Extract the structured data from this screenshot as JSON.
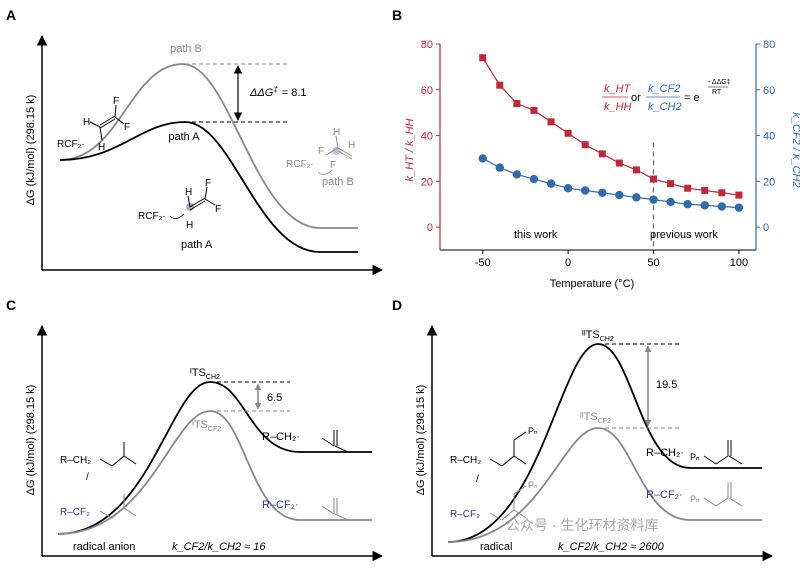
{
  "panels": {
    "a": {
      "letter": "A",
      "ylabel": "ΔG (kJ/mol) (298.15 k)",
      "path_b_label": "path B",
      "path_a_label": "path A",
      "ddg_label": "ΔΔG",
      "ddg_symbol": "‡",
      "ddg_value": "= 8.1",
      "reagent_left": "RCF₂·",
      "reagent_mid": "RCF₂·",
      "reagent_right": "RCF₂·",
      "atom_h": "H",
      "atom_f": "F",
      "path_b_small": "path B",
      "path_a_small": "path A",
      "colors": {
        "path_a": "#000000",
        "path_b": "#888888"
      }
    },
    "b": {
      "letter": "B",
      "xlabel": "Temperature (°C)",
      "ylabel_left": "k_HT / k_HH",
      "ylabel_right": "k_CF2 / k_CH2",
      "region_left": "this work",
      "region_right": "previous work",
      "eq_khT": "k_HT",
      "eq_khh": "k_HH",
      "eq_or": "or",
      "eq_kcf2": "k_CF2",
      "eq_kch2": "k_CH2",
      "eq_rhs": "= e",
      "eq_exp_num": "- ΔΔG‡",
      "eq_exp_den": "RT"
    },
    "c": {
      "letter": "C",
      "ylabel": "ΔG (kJ/mol) (298.15 k)",
      "ts_top": "ᴵTS",
      "ts_top_sub": "CH2",
      "ts_bottom": "ᴵTS",
      "ts_bottom_sub": "CF2",
      "gap_value": "6.5",
      "bottom_label": "radical anion",
      "ratio": "k_CF2/k_CH2 ≈ 16",
      "rxn_top": "R–CH₂·",
      "rxn_bottom": "R–CF₂·",
      "left_top": "R–CH₂",
      "left_bottom": "R–CF₂",
      "slash": "/"
    },
    "d": {
      "letter": "D",
      "ylabel": "ΔG (kJ/mol) (298.15 k)",
      "ts_top": "ᴵᴵTS",
      "ts_top_sub": "CH2",
      "ts_bottom": "ᴵᴵTS",
      "ts_bottom_sub": "CF2",
      "gap_value": "19.5",
      "bottom_label": "radical",
      "ratio": "k_CF2/k_CH2 ≈ 2600",
      "rxn_top": "R–CH₂·",
      "rxn_bottom": "R–CF₂·",
      "left_top": "R–CH₂",
      "left_bottom": "R–CF₂",
      "slash": "/",
      "pn": "Pₙ",
      "watermark": "公众号 · 生化环材资料库"
    }
  },
  "chart_data": {
    "type": "scatter",
    "title": "",
    "xlabel": "Temperature (°C)",
    "ylabel": "kHT / kHH",
    "y2label": "kCF2 / kCH2",
    "xlim": [
      -75,
      110
    ],
    "ylim": [
      -10,
      80
    ],
    "y2lim": [
      -10,
      80
    ],
    "xticks": [
      "-50",
      "0",
      "50",
      "100"
    ],
    "yticks": [
      "0",
      "20",
      "40",
      "60",
      "80"
    ],
    "y2ticks": [
      "0",
      "20",
      "40",
      "60",
      "80"
    ],
    "vline_x": 50,
    "series": [
      {
        "name": "kHT/kHH",
        "axis": "left",
        "color": "#c0283a",
        "marker": "square",
        "x": [
          -50,
          -40,
          -30,
          -20,
          -10,
          0,
          10,
          20,
          30,
          40,
          50,
          60,
          70,
          80,
          90,
          100
        ],
        "y": [
          74,
          62,
          54,
          51,
          46,
          41,
          36,
          32,
          28,
          25,
          21,
          19,
          17,
          16,
          15,
          14
        ]
      },
      {
        "name": "kCF2/kCH2",
        "axis": "right",
        "color": "#2f6bad",
        "marker": "circle",
        "x": [
          -50,
          -40,
          -30,
          -20,
          -10,
          0,
          10,
          20,
          30,
          40,
          50,
          60,
          70,
          80,
          90,
          100
        ],
        "y": [
          30,
          26,
          23,
          21,
          19,
          17,
          16,
          15,
          14,
          13,
          12,
          11,
          10,
          9.5,
          9,
          8.5
        ]
      }
    ]
  }
}
